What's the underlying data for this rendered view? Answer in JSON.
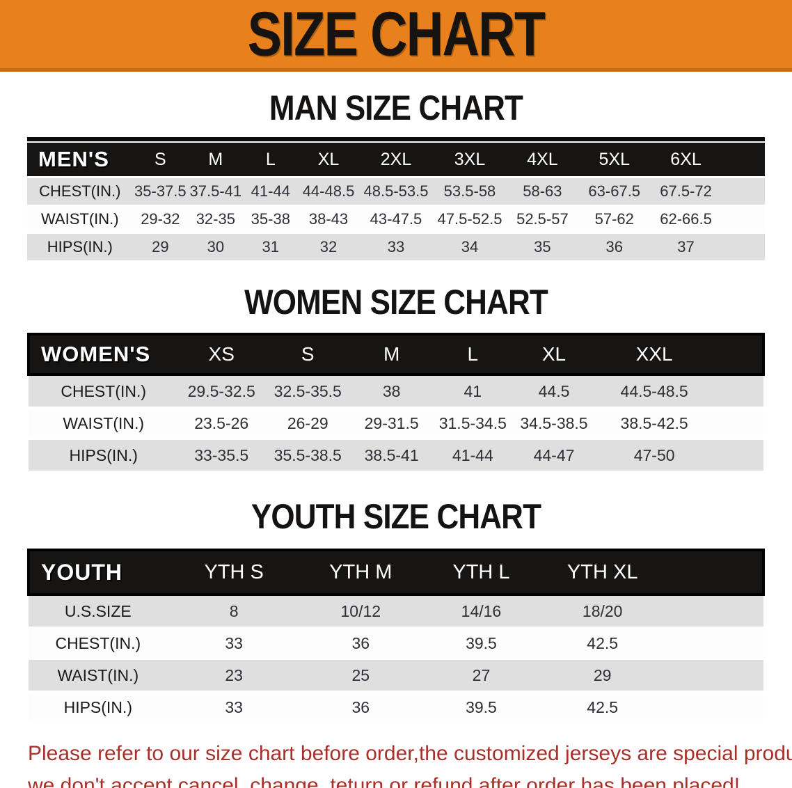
{
  "banner": {
    "title": "SIZE CHART",
    "bg_color": "#E8811C"
  },
  "sections": [
    {
      "id": "men",
      "heading": "MAN SIZE CHART",
      "header_label": "MEN'S",
      "columns": [
        "S",
        "M",
        "L",
        "XL",
        "2XL",
        "3XL",
        "4XL",
        "5XL",
        "6XL"
      ],
      "rows": [
        {
          "label": "CHEST(IN.)",
          "values": [
            "35-37.5",
            "37.5-41",
            "41-44",
            "44-48.5",
            "48.5-53.5",
            "53.5-58",
            "58-63",
            "63-67.5",
            "67.5-72"
          ]
        },
        {
          "label": "WAIST(IN.)",
          "values": [
            "29-32",
            "32-35",
            "35-38",
            "38-43",
            "43-47.5",
            "47.5-52.5",
            "52.5-57",
            "57-62",
            "62-66.5"
          ]
        },
        {
          "label": "HIPS(IN.)",
          "values": [
            "29",
            "30",
            "31",
            "32",
            "33",
            "34",
            "35",
            "36",
            "37"
          ]
        }
      ]
    },
    {
      "id": "women",
      "heading": "WOMEN SIZE CHART",
      "header_label": "WOMEN'S",
      "columns": [
        "XS",
        "S",
        "M",
        "L",
        "XL",
        "XXL"
      ],
      "rows": [
        {
          "label": "CHEST(IN.)",
          "values": [
            "29.5-32.5",
            "32.5-35.5",
            "38",
            "41",
            "44.5",
            "44.5-48.5"
          ]
        },
        {
          "label": "WAIST(IN.)",
          "values": [
            "23.5-26",
            "26-29",
            "29-31.5",
            "31.5-34.5",
            "34.5-38.5",
            "38.5-42.5"
          ]
        },
        {
          "label": "HIPS(IN.)",
          "values": [
            "33-35.5",
            "35.5-38.5",
            "38.5-41",
            "41-44",
            "44-47",
            "47-50"
          ]
        }
      ]
    },
    {
      "id": "youth",
      "heading": "YOUTH SIZE CHART",
      "header_label": "YOUTH",
      "columns": [
        "YTH S",
        "YTH M",
        "YTH L",
        "YTH XL"
      ],
      "rows": [
        {
          "label": "U.S.SIZE",
          "values": [
            "8",
            "10/12",
            "14/16",
            "18/20"
          ]
        },
        {
          "label": "CHEST(IN.)",
          "values": [
            "33",
            "36",
            "39.5",
            "42.5"
          ]
        },
        {
          "label": "WAIST(IN.)",
          "values": [
            "23",
            "25",
            "27",
            "29"
          ]
        },
        {
          "label": "HIPS(IN.)",
          "values": [
            "33",
            "36",
            "39.5",
            "42.5"
          ]
        }
      ]
    }
  ],
  "footer": {
    "text_color": "#A8302A",
    "line1": "Please refer to our size chart before order,the customized jerseys are special products,",
    "line2": "we don't accept cancel, change, teturn or refund after order has been placed!"
  }
}
